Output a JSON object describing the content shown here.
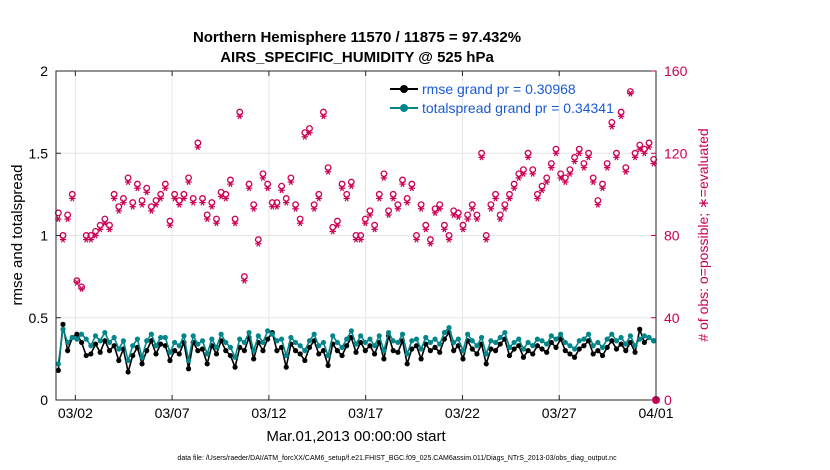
{
  "chart_data": {
    "type": "line",
    "title_line1": "Northern Hemisphere 11570 / 11875 = 97.432%",
    "title_line2": "AIRS_SPECIFIC_HUMIDITY @ 525 hPa",
    "xlabel": "Mar.01,2013 00:00:00 start",
    "ylabel_left": "rmse and totalspread",
    "ylabel_right": "# of obs: o=possible; ∗=evaluated",
    "x_tick_labels": [
      "03/02",
      "03/07",
      "03/12",
      "03/17",
      "03/22",
      "03/27",
      "04/01"
    ],
    "x_tick_days": [
      1,
      6,
      11,
      16,
      21,
      26,
      31
    ],
    "xlim_days": [
      0,
      31
    ],
    "ylim_left": [
      0,
      2
    ],
    "y_left_ticks": [
      "0",
      "0.5",
      "1",
      "1.5",
      "2"
    ],
    "ylim_right": [
      0,
      160
    ],
    "y_right_ticks": [
      "0",
      "40",
      "80",
      "120",
      "160"
    ],
    "footer": "data file: /Users/raeder/DAI/ATM_forcXX/CAM6_setup/f.e21.FHIST_BGC.f09_025.CAM6assim.011/Diags_NTrS_2013-03/obs_diag_output.nc",
    "series": [
      {
        "name": "rmse grand pr = 0.30968",
        "color": "#000000",
        "values": [
          0.18,
          0.46,
          0.3,
          0.38,
          0.4,
          0.35,
          0.27,
          0.28,
          0.34,
          0.29,
          0.36,
          0.3,
          0.33,
          0.24,
          0.31,
          0.17,
          0.27,
          0.32,
          0.22,
          0.3,
          0.36,
          0.28,
          0.34,
          0.33,
          0.24,
          0.3,
          0.28,
          0.35,
          0.19,
          0.35,
          0.3,
          0.31,
          0.22,
          0.33,
          0.28,
          0.36,
          0.3,
          0.27,
          0.2,
          0.32,
          0.3,
          0.38,
          0.25,
          0.35,
          0.3,
          0.37,
          0.41,
          0.3,
          0.32,
          0.2,
          0.34,
          0.3,
          0.28,
          0.24,
          0.32,
          0.36,
          0.28,
          0.3,
          0.21,
          0.34,
          0.3,
          0.27,
          0.33,
          0.38,
          0.29,
          0.35,
          0.3,
          0.33,
          0.28,
          0.35,
          0.25,
          0.39,
          0.3,
          0.29,
          0.36,
          0.22,
          0.31,
          0.33,
          0.25,
          0.34,
          0.3,
          0.32,
          0.29,
          0.37,
          0.41,
          0.3,
          0.33,
          0.25,
          0.36,
          0.31,
          0.28,
          0.34,
          0.22,
          0.31,
          0.3,
          0.34,
          0.37,
          0.27,
          0.31,
          0.33,
          0.26,
          0.3,
          0.28,
          0.33,
          0.31,
          0.29,
          0.35,
          0.32,
          0.37,
          0.3,
          0.28,
          0.26,
          0.31,
          0.33,
          0.36,
          0.28,
          0.3,
          0.27,
          0.32,
          0.36,
          0.31,
          0.34,
          0.3,
          0.35,
          0.29,
          0.43,
          0.35,
          0.38,
          0.36
        ]
      },
      {
        "name": "totalspread grand pr = 0.34341",
        "color": "#00868b",
        "values": [
          0.22,
          0.43,
          0.35,
          0.38,
          0.37,
          0.4,
          0.37,
          0.33,
          0.39,
          0.36,
          0.41,
          0.35,
          0.38,
          0.31,
          0.36,
          0.24,
          0.33,
          0.37,
          0.26,
          0.36,
          0.4,
          0.33,
          0.38,
          0.38,
          0.29,
          0.35,
          0.33,
          0.39,
          0.24,
          0.39,
          0.34,
          0.36,
          0.28,
          0.37,
          0.32,
          0.4,
          0.35,
          0.32,
          0.26,
          0.37,
          0.35,
          0.41,
          0.3,
          0.39,
          0.35,
          0.42,
          0.4,
          0.36,
          0.37,
          0.27,
          0.38,
          0.35,
          0.33,
          0.3,
          0.36,
          0.4,
          0.33,
          0.35,
          0.27,
          0.39,
          0.35,
          0.32,
          0.37,
          0.42,
          0.34,
          0.39,
          0.35,
          0.37,
          0.33,
          0.39,
          0.3,
          0.41,
          0.36,
          0.35,
          0.4,
          0.28,
          0.36,
          0.37,
          0.31,
          0.38,
          0.35,
          0.37,
          0.34,
          0.41,
          0.44,
          0.35,
          0.37,
          0.3,
          0.4,
          0.36,
          0.33,
          0.38,
          0.28,
          0.36,
          0.35,
          0.38,
          0.41,
          0.32,
          0.35,
          0.37,
          0.31,
          0.35,
          0.33,
          0.37,
          0.36,
          0.34,
          0.39,
          0.37,
          0.4,
          0.35,
          0.33,
          0.31,
          0.36,
          0.37,
          0.4,
          0.33,
          0.35,
          0.32,
          0.37,
          0.4,
          0.36,
          0.38,
          0.34,
          0.39,
          0.33,
          0.37,
          0.39,
          0.38,
          0.36
        ]
      }
    ],
    "obs_possible": [
      91,
      80,
      90,
      100,
      58,
      55,
      80,
      80,
      82,
      85,
      88,
      85,
      100,
      94,
      98,
      108,
      96,
      105,
      97,
      103,
      94,
      97,
      100,
      105,
      87,
      100,
      97,
      100,
      108,
      98,
      125,
      98,
      90,
      96,
      88,
      101,
      100,
      107,
      88,
      140,
      60,
      105,
      95,
      78,
      110,
      105,
      96,
      96,
      104,
      98,
      108,
      95,
      88,
      130,
      132,
      95,
      100,
      140,
      113,
      84,
      87,
      105,
      100,
      106,
      80,
      80,
      88,
      92,
      85,
      100,
      110,
      92,
      100,
      95,
      107,
      98,
      105,
      80,
      95,
      85,
      78,
      93,
      95,
      85,
      80,
      92,
      91,
      85,
      90,
      95,
      90,
      120,
      80,
      95,
      100,
      90,
      95,
      100,
      105,
      110,
      112,
      120,
      112,
      100,
      104,
      108,
      115,
      122,
      110,
      108,
      112,
      118,
      122,
      115,
      120,
      108,
      97,
      105,
      115,
      135,
      120,
      140,
      113,
      150,
      120,
      124,
      122,
      125,
      117
    ],
    "obs_evaluated": [
      88,
      78,
      88,
      98,
      57,
      54,
      78,
      78,
      80,
      83,
      86,
      83,
      98,
      92,
      96,
      106,
      94,
      103,
      95,
      101,
      92,
      95,
      98,
      103,
      85,
      98,
      95,
      98,
      106,
      96,
      123,
      96,
      88,
      94,
      86,
      99,
      98,
      105,
      86,
      138,
      58,
      103,
      93,
      76,
      108,
      103,
      94,
      94,
      102,
      96,
      106,
      93,
      86,
      128,
      130,
      93,
      98,
      138,
      111,
      82,
      85,
      103,
      98,
      104,
      78,
      78,
      86,
      90,
      83,
      98,
      108,
      90,
      98,
      93,
      105,
      96,
      103,
      78,
      93,
      83,
      76,
      91,
      93,
      83,
      78,
      90,
      89,
      83,
      88,
      93,
      88,
      118,
      78,
      93,
      98,
      88,
      93,
      98,
      103,
      108,
      110,
      118,
      110,
      98,
      102,
      106,
      113,
      120,
      108,
      106,
      110,
      116,
      120,
      113,
      118,
      106,
      95,
      103,
      113,
      133,
      118,
      138,
      111,
      149,
      118,
      122,
      120,
      123,
      115
    ]
  }
}
